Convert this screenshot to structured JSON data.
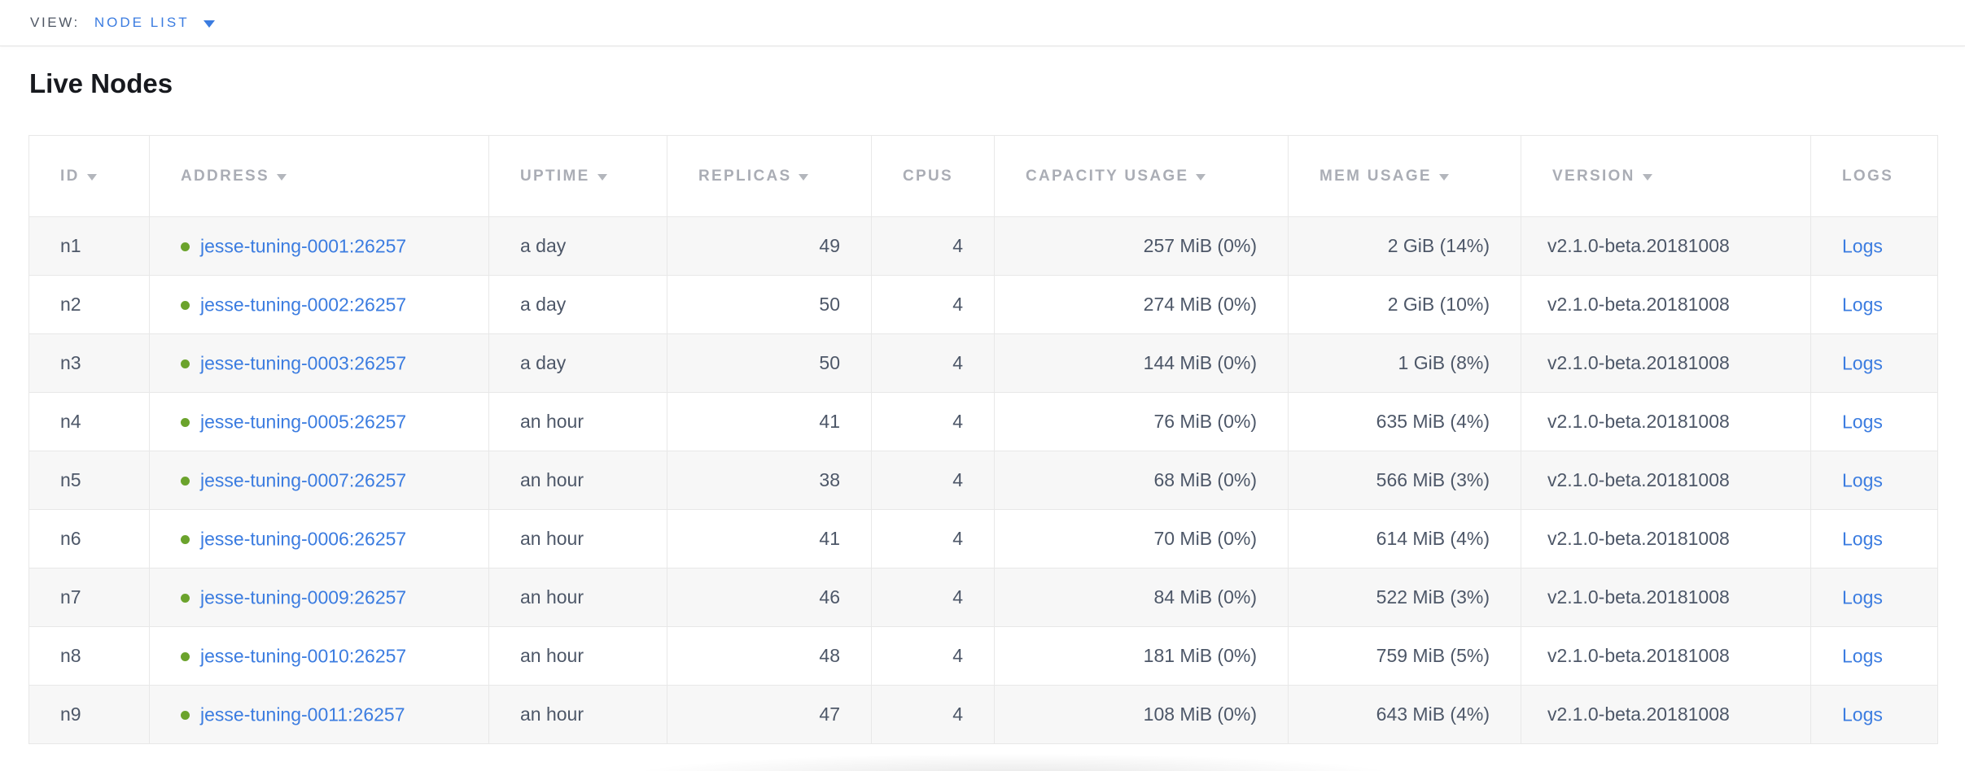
{
  "view_bar": {
    "label": "VIEW:",
    "selected_view": "NODE LIST"
  },
  "page": {
    "title": "Live Nodes"
  },
  "icons": {
    "dropdown_caret": "caret-down",
    "sort_caret": "caret-down",
    "node_status": "green-dot"
  },
  "colors": {
    "link_blue": "#3b7ce0",
    "header_label_gray": "#aaadb5",
    "cell_text": "#4d5768",
    "live_green": "#6ba32c",
    "row_stripe": "#f7f7f7",
    "border": "#e8e8e8"
  },
  "table": {
    "columns": [
      {
        "key": "id",
        "label": "ID",
        "sortable": true,
        "align": "left"
      },
      {
        "key": "address",
        "label": "ADDRESS",
        "sortable": true,
        "align": "left"
      },
      {
        "key": "uptime",
        "label": "UPTIME",
        "sortable": true,
        "align": "left"
      },
      {
        "key": "replicas",
        "label": "REPLICAS",
        "sortable": true,
        "align": "right"
      },
      {
        "key": "cpus",
        "label": "CPUS",
        "sortable": false,
        "align": "right"
      },
      {
        "key": "capacity",
        "label": "CAPACITY USAGE",
        "sortable": true,
        "align": "right"
      },
      {
        "key": "mem",
        "label": "MEM USAGE",
        "sortable": true,
        "align": "right"
      },
      {
        "key": "version",
        "label": "VERSION",
        "sortable": true,
        "align": "left"
      },
      {
        "key": "logs",
        "label": "LOGS",
        "sortable": false,
        "align": "left"
      }
    ],
    "rows": [
      {
        "id": "n1",
        "address": "jesse-tuning-0001:26257",
        "uptime": "a day",
        "replicas": "49",
        "cpus": "4",
        "capacity": "257 MiB (0%)",
        "mem": "2 GiB (14%)",
        "version": "v2.1.0-beta.20181008",
        "logs": "Logs"
      },
      {
        "id": "n2",
        "address": "jesse-tuning-0002:26257",
        "uptime": "a day",
        "replicas": "50",
        "cpus": "4",
        "capacity": "274 MiB (0%)",
        "mem": "2 GiB (10%)",
        "version": "v2.1.0-beta.20181008",
        "logs": "Logs"
      },
      {
        "id": "n3",
        "address": "jesse-tuning-0003:26257",
        "uptime": "a day",
        "replicas": "50",
        "cpus": "4",
        "capacity": "144 MiB (0%)",
        "mem": "1 GiB (8%)",
        "version": "v2.1.0-beta.20181008",
        "logs": "Logs"
      },
      {
        "id": "n4",
        "address": "jesse-tuning-0005:26257",
        "uptime": "an hour",
        "replicas": "41",
        "cpus": "4",
        "capacity": "76 MiB (0%)",
        "mem": "635 MiB (4%)",
        "version": "v2.1.0-beta.20181008",
        "logs": "Logs"
      },
      {
        "id": "n5",
        "address": "jesse-tuning-0007:26257",
        "uptime": "an hour",
        "replicas": "38",
        "cpus": "4",
        "capacity": "68 MiB (0%)",
        "mem": "566 MiB (3%)",
        "version": "v2.1.0-beta.20181008",
        "logs": "Logs"
      },
      {
        "id": "n6",
        "address": "jesse-tuning-0006:26257",
        "uptime": "an hour",
        "replicas": "41",
        "cpus": "4",
        "capacity": "70 MiB (0%)",
        "mem": "614 MiB (4%)",
        "version": "v2.1.0-beta.20181008",
        "logs": "Logs"
      },
      {
        "id": "n7",
        "address": "jesse-tuning-0009:26257",
        "uptime": "an hour",
        "replicas": "46",
        "cpus": "4",
        "capacity": "84 MiB (0%)",
        "mem": "522 MiB (3%)",
        "version": "v2.1.0-beta.20181008",
        "logs": "Logs"
      },
      {
        "id": "n8",
        "address": "jesse-tuning-0010:26257",
        "uptime": "an hour",
        "replicas": "48",
        "cpus": "4",
        "capacity": "181 MiB (0%)",
        "mem": "759 MiB (5%)",
        "version": "v2.1.0-beta.20181008",
        "logs": "Logs"
      },
      {
        "id": "n9",
        "address": "jesse-tuning-0011:26257",
        "uptime": "an hour",
        "replicas": "47",
        "cpus": "4",
        "capacity": "108 MiB (0%)",
        "mem": "643 MiB (4%)",
        "version": "v2.1.0-beta.20181008",
        "logs": "Logs"
      }
    ]
  }
}
